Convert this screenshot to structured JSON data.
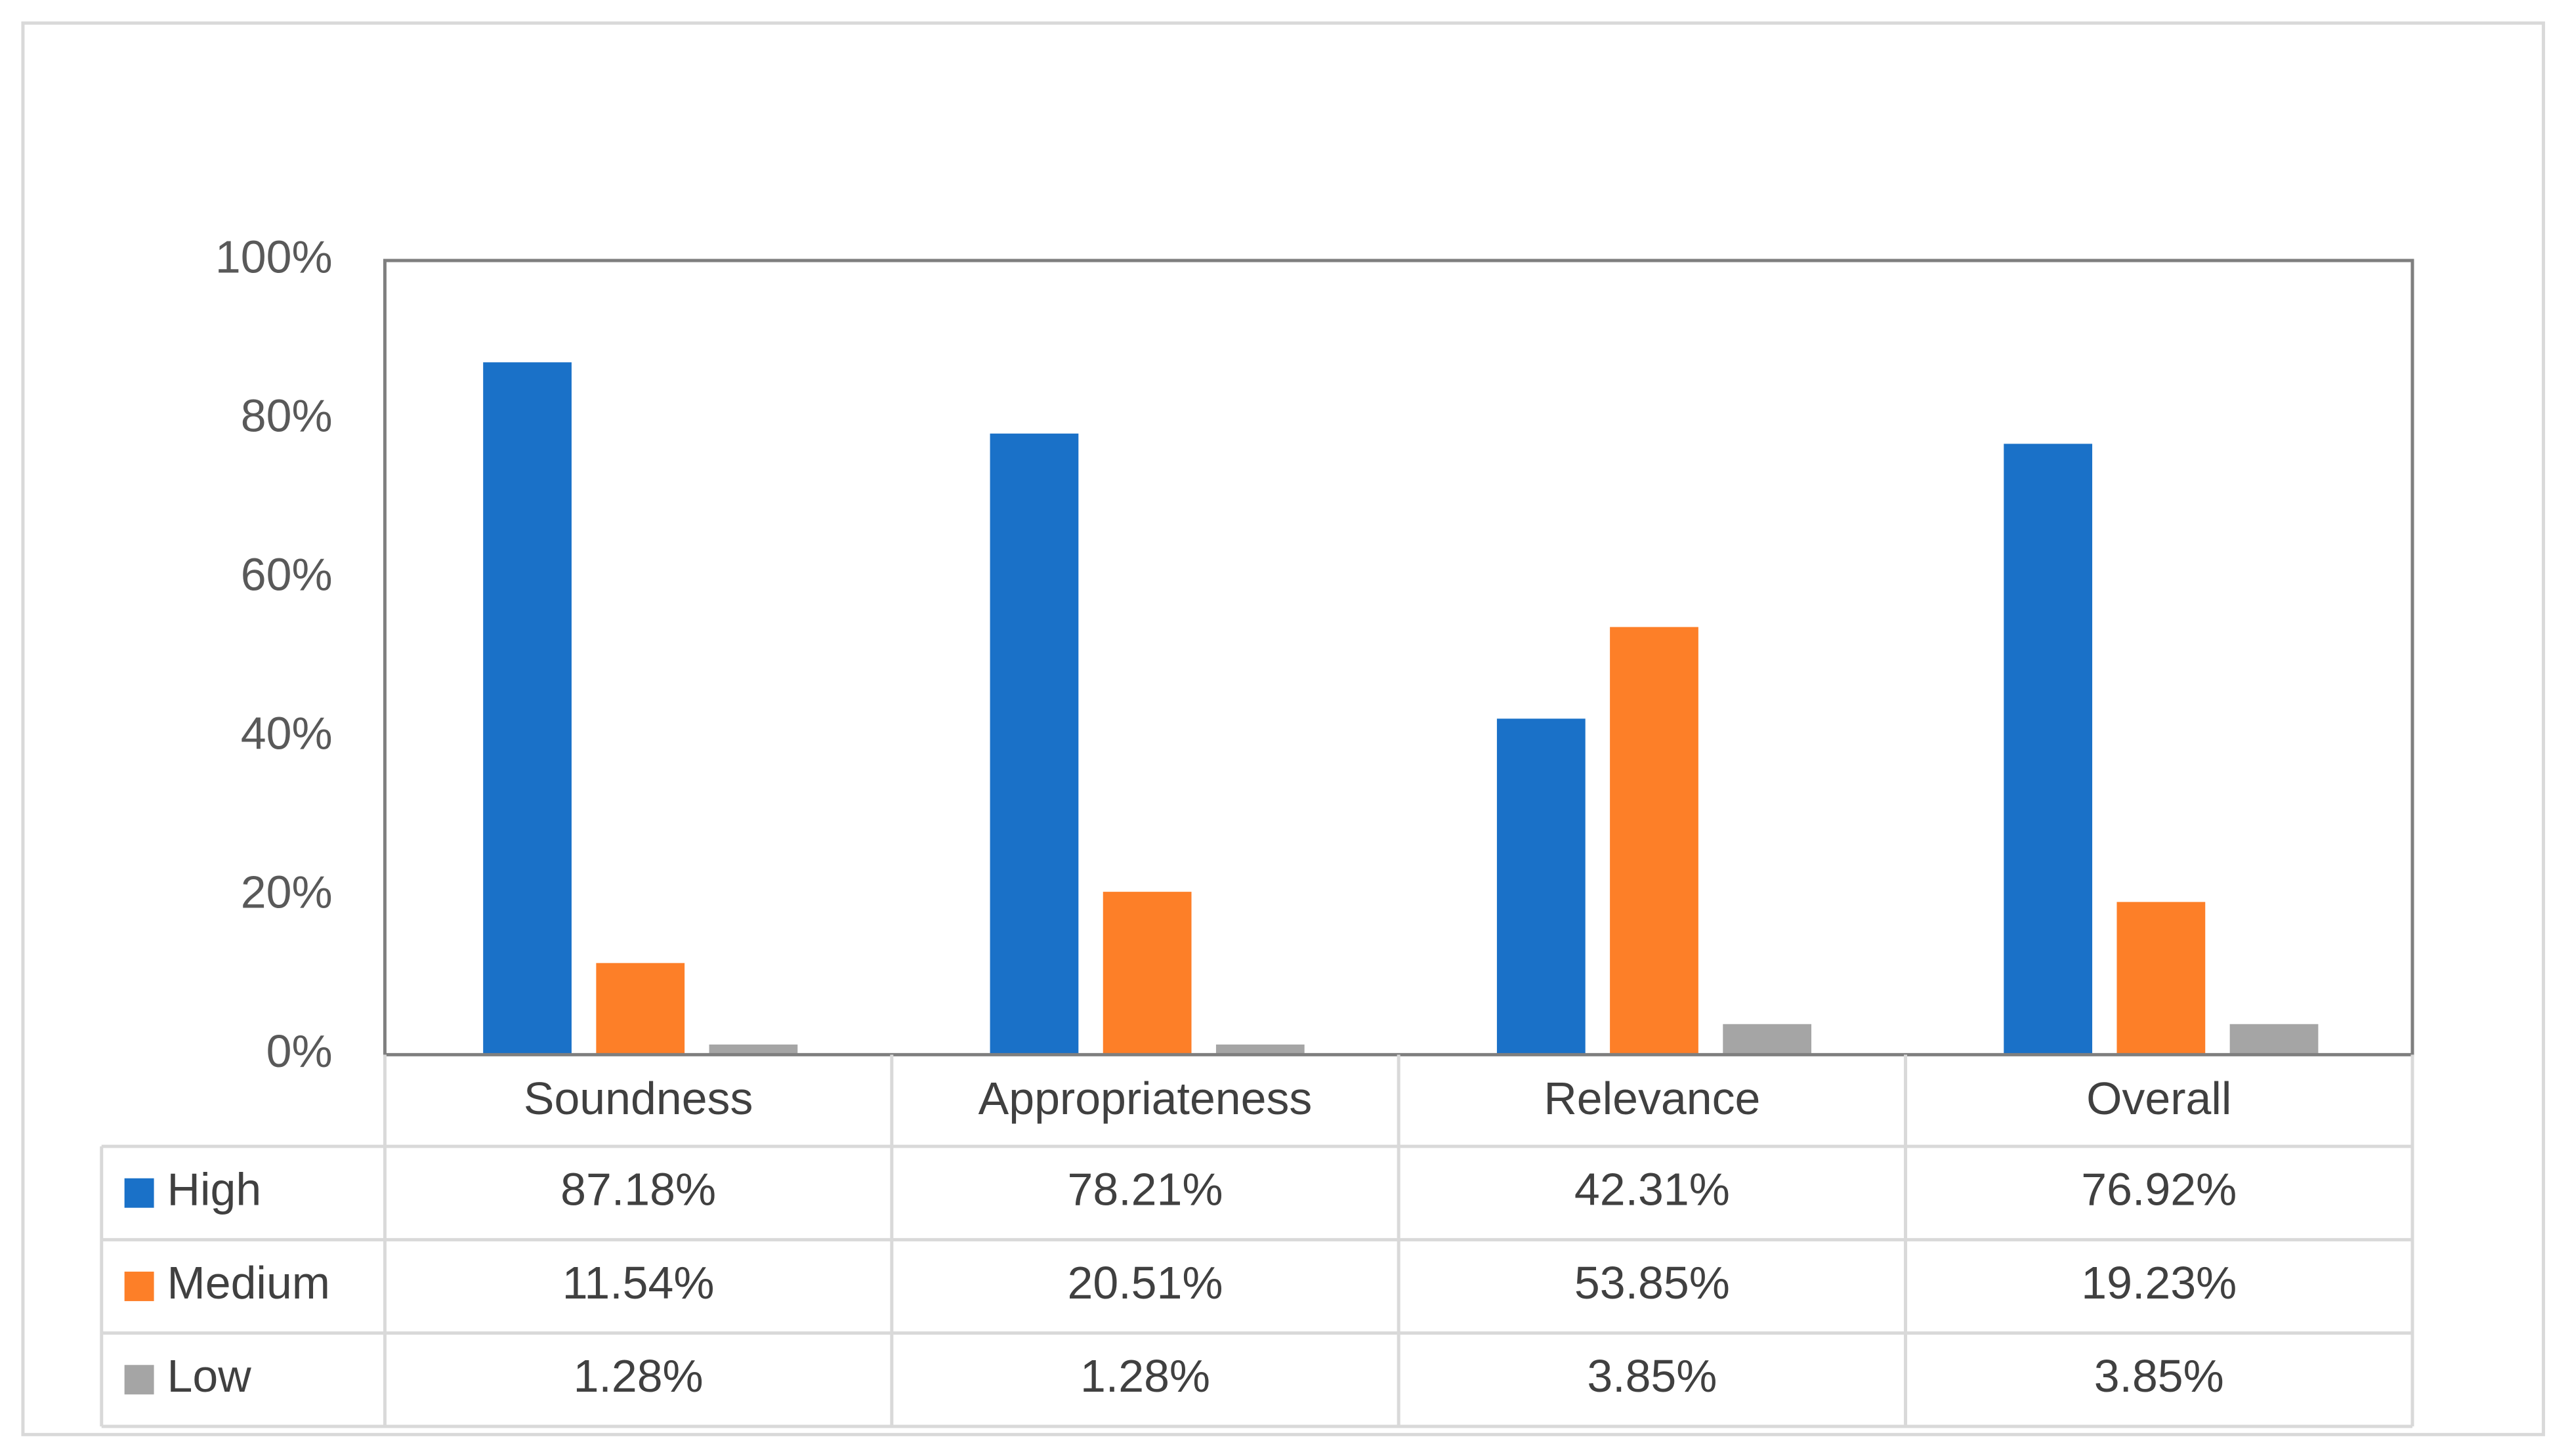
{
  "chart_data": {
    "type": "bar",
    "categories": [
      "Soundness",
      "Appropriateness",
      "Relevance",
      "Overall"
    ],
    "series": [
      {
        "name": "High",
        "color": "#1a71c8",
        "values": [
          87.18,
          78.21,
          42.31,
          76.92
        ],
        "value_labels": [
          "87.18%",
          "78.21%",
          "42.31%",
          "76.92%"
        ]
      },
      {
        "name": "Medium",
        "color": "#fd7f28",
        "values": [
          11.54,
          20.51,
          53.85,
          19.23
        ],
        "value_labels": [
          "11.54%",
          "20.51%",
          "53.85%",
          "19.23%"
        ]
      },
      {
        "name": "Low",
        "color": "#a5a5a5",
        "values": [
          1.28,
          1.28,
          3.85,
          3.85
        ],
        "value_labels": [
          "1.28%",
          "1.28%",
          "3.85%",
          "3.85%"
        ]
      }
    ],
    "ylim": [
      0,
      100
    ],
    "yticks": [
      {
        "value": 0,
        "label": "0%"
      },
      {
        "value": 20,
        "label": "20%"
      },
      {
        "value": 40,
        "label": "40%"
      },
      {
        "value": 60,
        "label": "60%"
      },
      {
        "value": 80,
        "label": "80%"
      },
      {
        "value": 100,
        "label": "100%"
      }
    ],
    "grid": false,
    "data_table": true
  }
}
